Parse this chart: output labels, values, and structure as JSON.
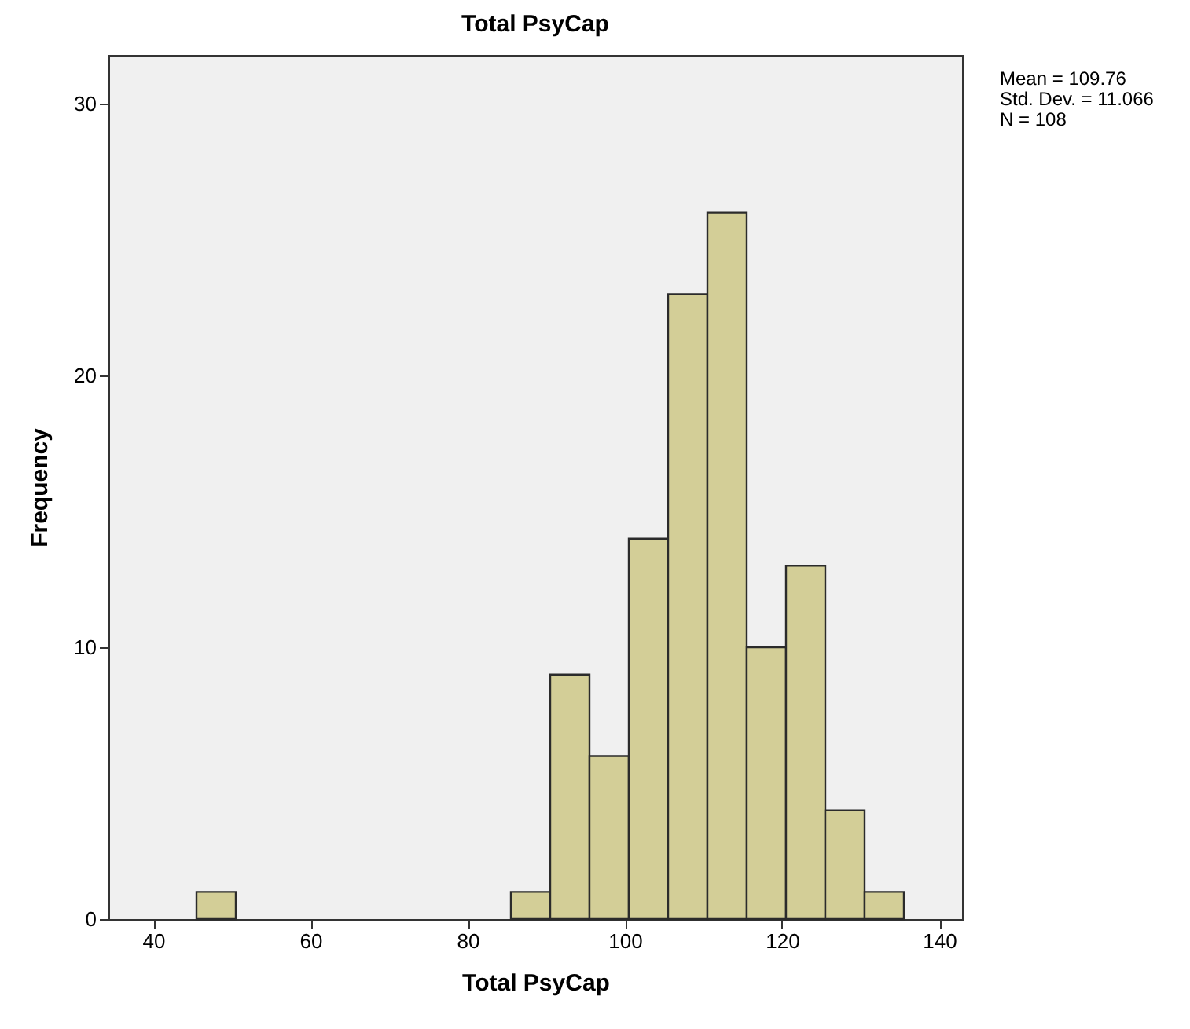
{
  "chart_data": {
    "type": "histogram",
    "title": "Total PsyCap",
    "xlabel": "Total PsyCap",
    "ylabel": "Frequency",
    "bins": [
      45.5,
      50.5,
      55.5,
      60.5,
      65.5,
      70.5,
      75.5,
      80.5,
      85.5,
      90.5,
      95.5,
      100.5,
      105.5,
      110.5,
      115.5,
      120.5,
      125.5,
      130.5,
      135.5
    ],
    "values": [
      1,
      0,
      0,
      0,
      0,
      0,
      0,
      0,
      1,
      9,
      6,
      14,
      23,
      26,
      10,
      13,
      4,
      1
    ],
    "color": "#d3ce97",
    "xlim": [
      34.3,
      142.9
    ],
    "xticks": [
      40,
      60,
      80,
      100,
      120,
      140
    ],
    "ylim": [
      0,
      31.8
    ],
    "yticks": [
      0,
      10,
      20,
      30
    ],
    "grid": false,
    "annotations": [
      "Mean = 109.76",
      "Std. Dev. = 11.066",
      "N = 108"
    ]
  }
}
